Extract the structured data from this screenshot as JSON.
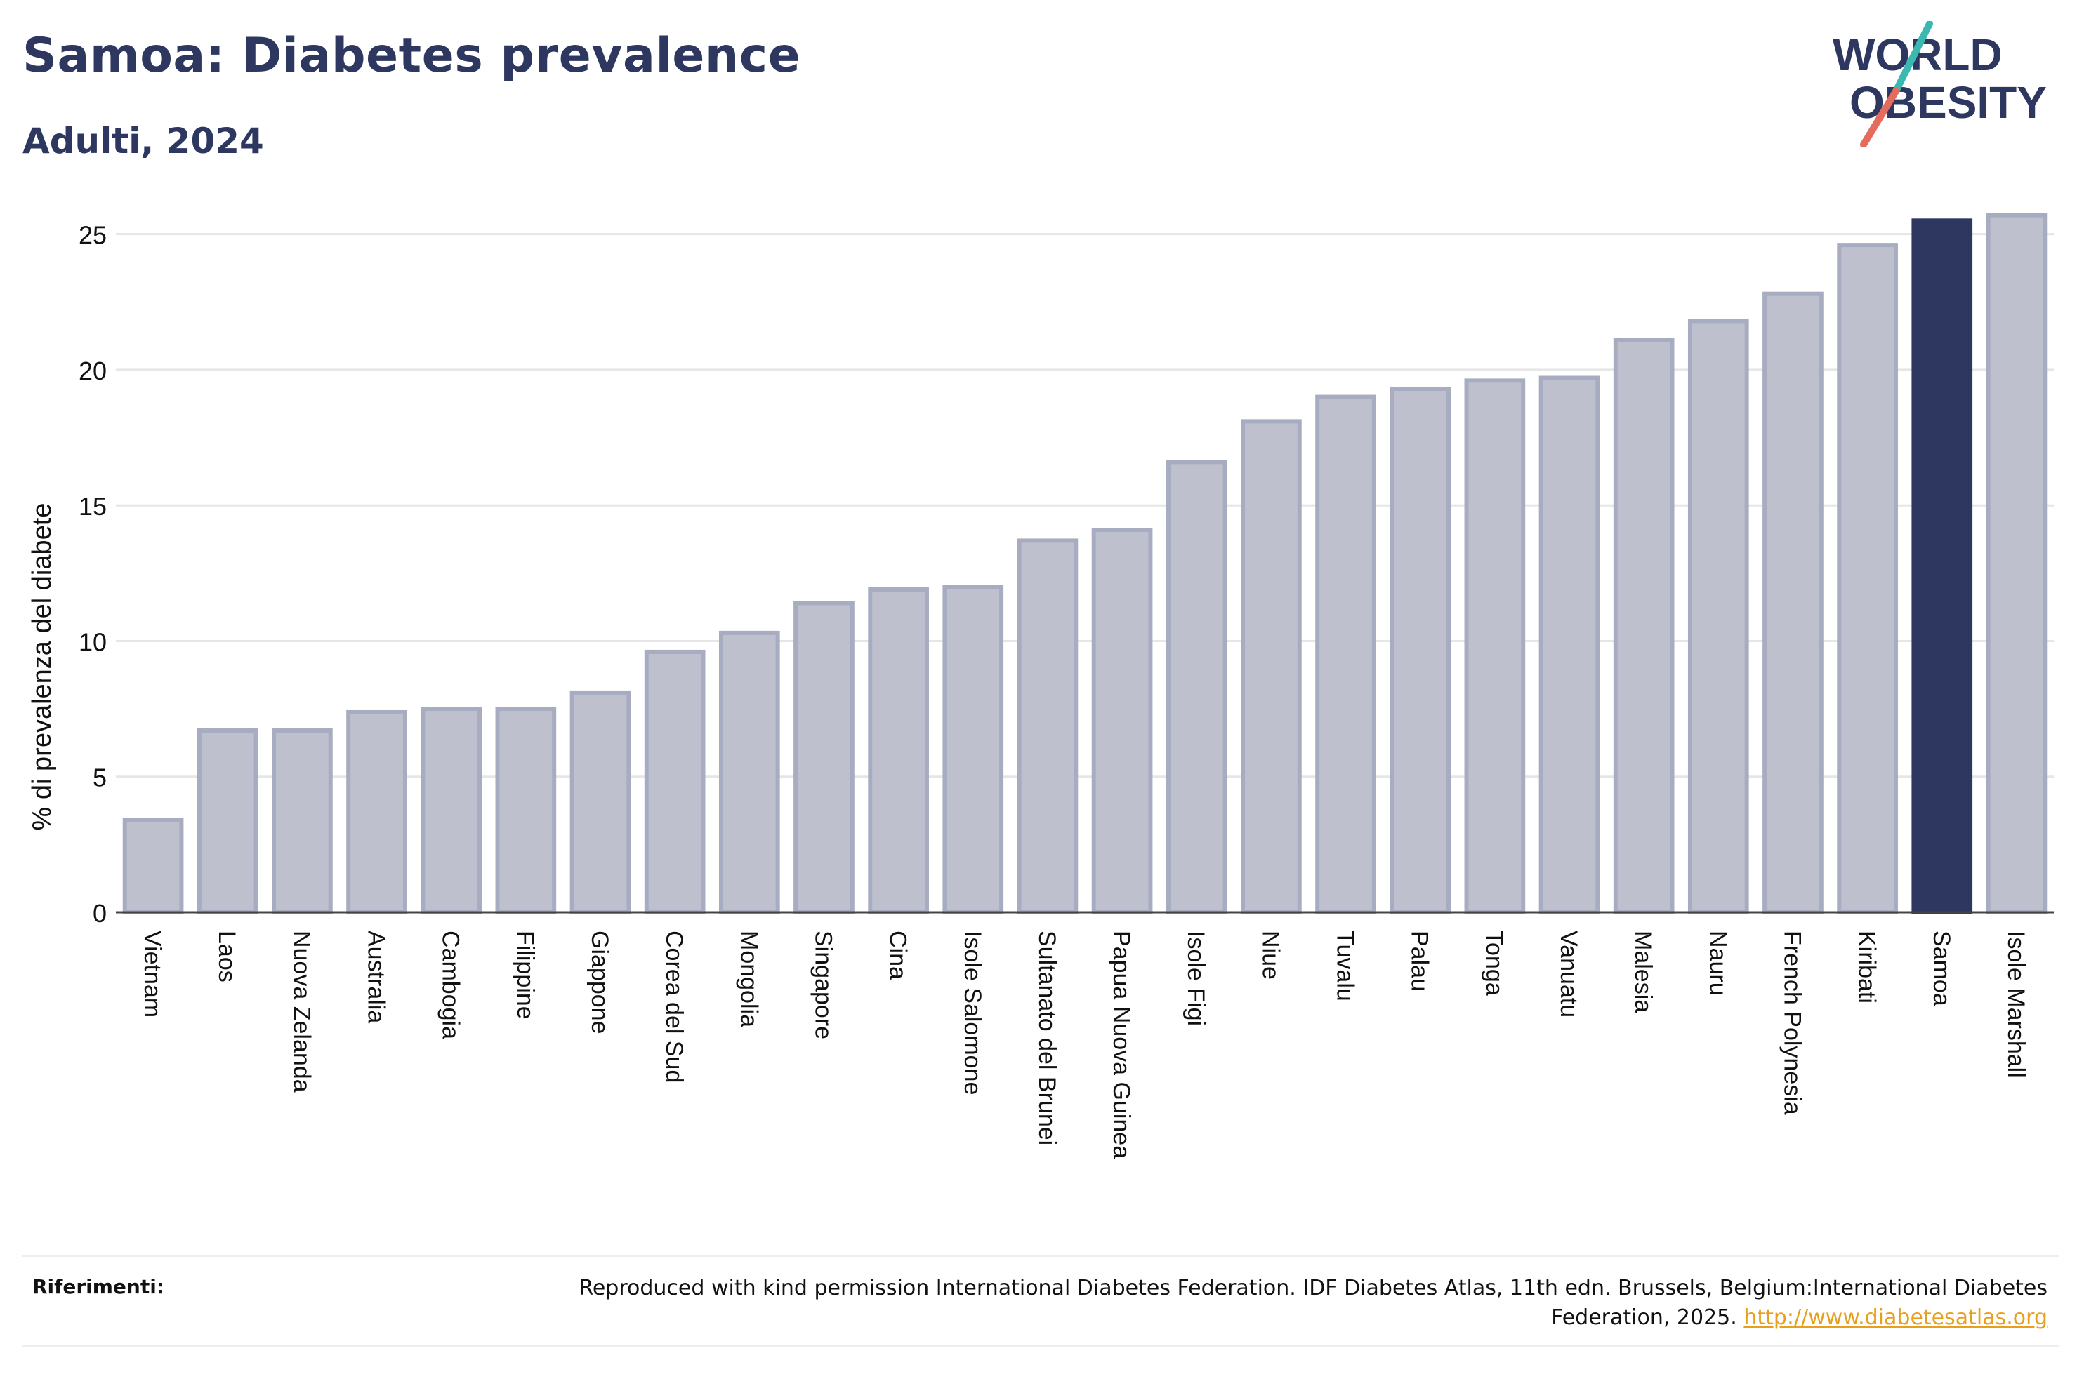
{
  "header": {
    "title": "Samoa: Diabetes prevalence",
    "subtitle": "Adulti, 2024",
    "logo_line1": "WORLD",
    "logo_line2": "OBESITY"
  },
  "chart_data": {
    "type": "bar",
    "ylabel": "% di prevalenza del diabete",
    "ylim": [
      0,
      26
    ],
    "yticks": [
      0,
      5,
      10,
      15,
      20,
      25
    ],
    "grid": true,
    "highlight": "Samoa",
    "categories": [
      "Vietnam",
      "Laos",
      "Nuova Zelanda",
      "Australia",
      "Cambogia",
      "Filippine",
      "Giappone",
      "Corea del Sud",
      "Mongolia",
      "Singapore",
      "Cina",
      "Isole Salomone",
      "Sultanato del Brunei",
      "Papua Nuova Guinea",
      "Isole Figi",
      "Niue",
      "Tuvalu",
      "Palau",
      "Tonga",
      "Vanuatu",
      "Malesia",
      "Nauru",
      "French Polynesia",
      "Kiribati",
      "Samoa",
      "Isole Marshall"
    ],
    "values": [
      3.4,
      6.7,
      6.7,
      7.4,
      7.5,
      7.5,
      8.1,
      9.6,
      10.3,
      11.4,
      11.9,
      12.0,
      13.7,
      14.1,
      16.6,
      18.1,
      19.0,
      19.3,
      19.6,
      19.7,
      21.1,
      21.8,
      22.8,
      24.6,
      25.5,
      25.7
    ]
  },
  "colors": {
    "bar": "#bec1cd",
    "bar_border": "#a7acc0",
    "highlight": "#2d375f",
    "text_dark": "#2d375f",
    "grid": "#e6e6e6",
    "link": "#e8a01c",
    "logo_teal": "#3bb8b0",
    "logo_coral": "#e56b5d"
  },
  "footer": {
    "ref_label": "Riferimenti:",
    "ref_text": "Reproduced with kind permission International Diabetes Federation. IDF Diabetes Atlas, 11th edn. Brussels, Belgium:International Diabetes Federation, 2025.",
    "ref_link": "http://www.diabetesatlas.org"
  }
}
